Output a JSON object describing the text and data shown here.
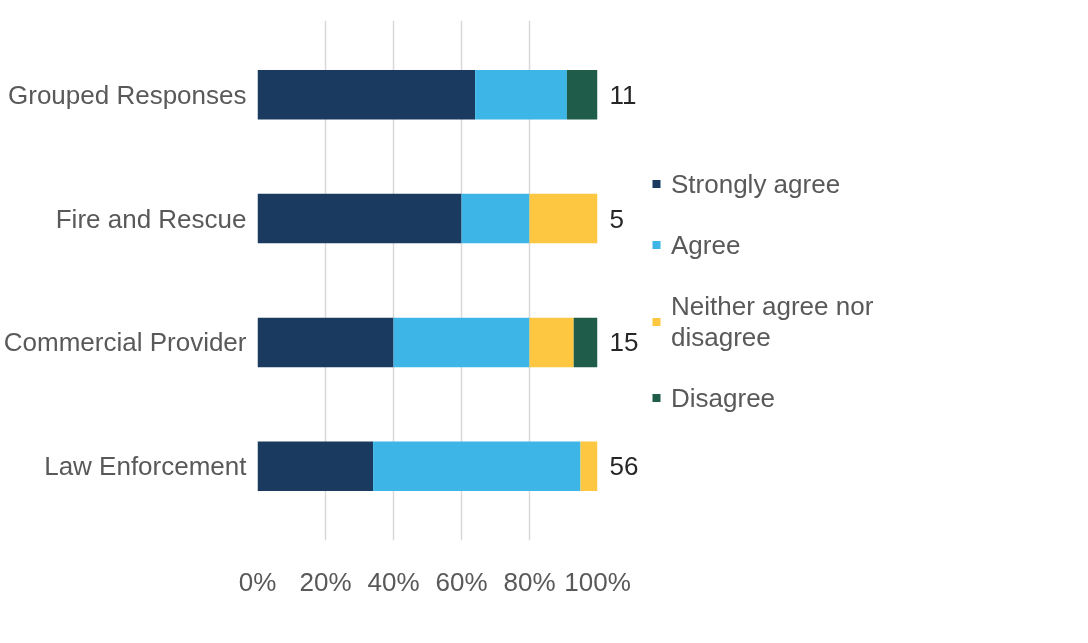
{
  "chart_data": {
    "type": "bar",
    "orientation": "horizontal",
    "stacked": true,
    "categories": [
      "Grouped Responses",
      "Fire and Rescue",
      "Commercial Provider",
      "Law Enforcement"
    ],
    "series": [
      {
        "name": "Strongly agree",
        "color": "#1b3a60",
        "values": [
          64,
          60,
          40,
          34
        ]
      },
      {
        "name": "Agree",
        "color": "#3db5e6",
        "values": [
          27,
          20,
          40,
          61
        ]
      },
      {
        "name": "Neither agree nor disagree",
        "color": "#fdc741",
        "values": [
          0,
          20,
          13,
          5
        ]
      },
      {
        "name": "Disagree",
        "color": "#1f5c4a",
        "values": [
          9,
          0,
          7,
          0
        ]
      }
    ],
    "xlim": [
      0,
      100
    ],
    "xticks": [
      {
        "value": 0,
        "label": "0%"
      },
      {
        "value": 20,
        "label": "20%"
      },
      {
        "value": 40,
        "label": "40%"
      },
      {
        "value": 60,
        "label": "60%"
      },
      {
        "value": 80,
        "label": "80%"
      },
      {
        "value": 100,
        "label": "100%"
      }
    ],
    "grid": "x",
    "legend": "right",
    "annotations": [
      "11",
      "5",
      "15",
      "56"
    ]
  }
}
